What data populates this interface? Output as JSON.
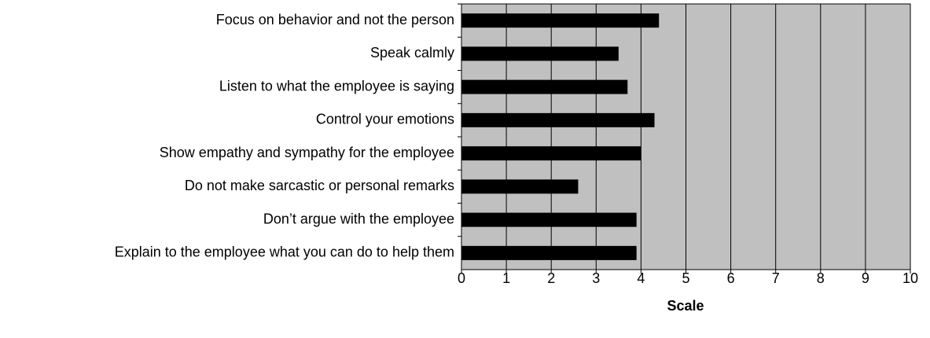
{
  "chart_data": {
    "type": "barh",
    "categories": [
      "Focus on behavior and not the person",
      "Speak calmly",
      "Listen to what the employee is saying",
      "Control your emotions",
      "Show empathy and sympathy for the employee",
      "Do not make sarcastic or personal remarks",
      "Don’t argue with the employee",
      "Explain to the employee what you can do to help them"
    ],
    "values": [
      4.4,
      3.5,
      3.7,
      4.3,
      4.0,
      2.6,
      3.9,
      3.9
    ],
    "color": "#000000",
    "xlabel": "Scale",
    "xlim": [
      0,
      10
    ],
    "xticks": [
      0,
      1,
      2,
      3,
      4,
      5,
      6,
      7,
      8,
      9,
      10
    ],
    "grid": true
  }
}
